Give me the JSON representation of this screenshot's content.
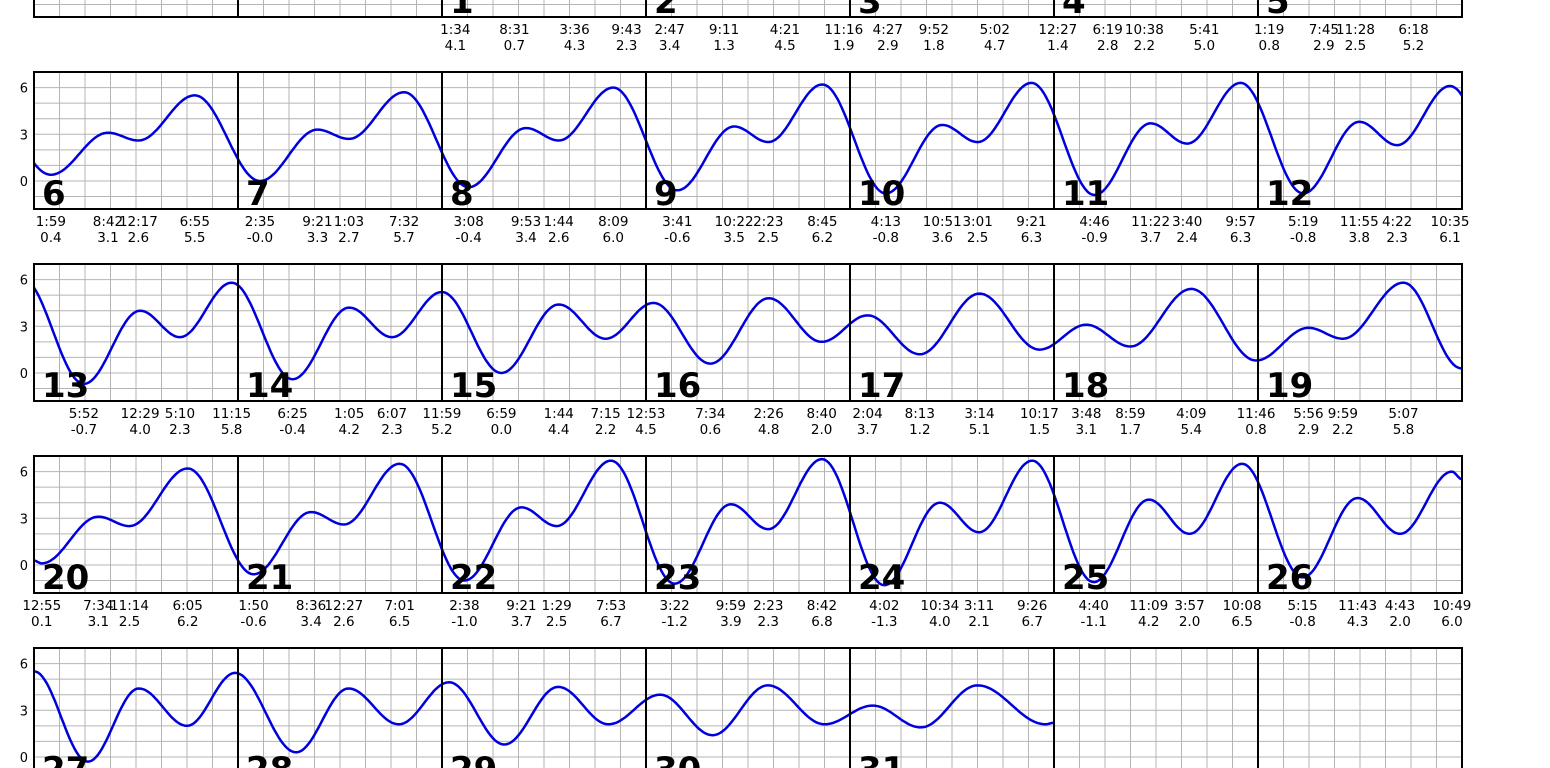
{
  "chart_data": {
    "type": "line",
    "title": "",
    "xlabel": "",
    "ylabel": "",
    "ylim": [
      -1.8,
      7.0
    ],
    "yticks": [
      0,
      3,
      6
    ],
    "grid": true,
    "colors": {
      "curve": "#0000dd",
      "grid": "#b4b4b4",
      "frame": "#000000"
    },
    "weeks": [
      [
        null,
        null,
        1,
        2,
        3,
        4,
        5
      ],
      [
        6,
        7,
        8,
        9,
        10,
        11,
        12
      ],
      [
        13,
        14,
        15,
        16,
        17,
        18,
        19
      ],
      [
        20,
        21,
        22,
        23,
        24,
        25,
        26
      ],
      [
        27,
        28,
        29,
        30,
        31,
        null,
        null
      ]
    ],
    "days": [
      {
        "day": 1,
        "events": [
          [
            "1:34",
            "4.1"
          ],
          [
            "8:31",
            "0.7"
          ],
          [
            "3:36",
            "4.3"
          ],
          [
            "9:43",
            "2.3"
          ]
        ]
      },
      {
        "day": 2,
        "events": [
          [
            "2:47",
            "3.4"
          ],
          [
            "9:11",
            "1.3"
          ],
          [
            "4:21",
            "4.5"
          ],
          [
            "11:16",
            "1.9"
          ]
        ]
      },
      {
        "day": 3,
        "events": [
          [
            "4:27",
            "2.9"
          ],
          [
            "9:52",
            "1.8"
          ],
          [
            "5:02",
            "4.7"
          ]
        ]
      },
      {
        "day": 4,
        "events": [
          [
            "12:27",
            "1.4"
          ],
          [
            "6:19",
            "2.8"
          ],
          [
            "10:38",
            "2.2"
          ],
          [
            "5:41",
            "5.0"
          ]
        ]
      },
      {
        "day": 5,
        "events": [
          [
            "1:19",
            "0.8"
          ],
          [
            "7:45",
            "2.9"
          ],
          [
            "11:28",
            "2.5"
          ],
          [
            "6:18",
            "5.2"
          ]
        ]
      },
      {
        "day": 6,
        "events": [
          [
            "1:59",
            "0.4"
          ],
          [
            "8:42",
            "3.1"
          ],
          [
            "12:17",
            "2.6"
          ],
          [
            "6:55",
            "5.5"
          ]
        ]
      },
      {
        "day": 7,
        "events": [
          [
            "2:35",
            "-0.0"
          ],
          [
            "9:21",
            "3.3"
          ],
          [
            "1:03",
            "2.7"
          ],
          [
            "7:32",
            "5.7"
          ]
        ]
      },
      {
        "day": 8,
        "events": [
          [
            "3:08",
            "-0.4"
          ],
          [
            "9:53",
            "3.4"
          ],
          [
            "1:44",
            "2.6"
          ],
          [
            "8:09",
            "6.0"
          ]
        ]
      },
      {
        "day": 9,
        "events": [
          [
            "3:41",
            "-0.6"
          ],
          [
            "10:22",
            "3.5"
          ],
          [
            "2:23",
            "2.5"
          ],
          [
            "8:45",
            "6.2"
          ]
        ]
      },
      {
        "day": 10,
        "events": [
          [
            "4:13",
            "-0.8"
          ],
          [
            "10:51",
            "3.6"
          ],
          [
            "3:01",
            "2.5"
          ],
          [
            "9:21",
            "6.3"
          ]
        ]
      },
      {
        "day": 11,
        "events": [
          [
            "4:46",
            "-0.9"
          ],
          [
            "11:22",
            "3.7"
          ],
          [
            "3:40",
            "2.4"
          ],
          [
            "9:57",
            "6.3"
          ]
        ]
      },
      {
        "day": 12,
        "events": [
          [
            "5:19",
            "-0.8"
          ],
          [
            "11:55",
            "3.8"
          ],
          [
            "4:22",
            "2.3"
          ],
          [
            "10:35",
            "6.1"
          ]
        ]
      },
      {
        "day": 13,
        "events": [
          [
            "5:52",
            "-0.7"
          ],
          [
            "12:29",
            "4.0"
          ],
          [
            "5:10",
            "2.3"
          ],
          [
            "11:15",
            "5.8"
          ]
        ]
      },
      {
        "day": 14,
        "events": [
          [
            "6:25",
            "-0.4"
          ],
          [
            "1:05",
            "4.2"
          ],
          [
            "6:07",
            "2.3"
          ],
          [
            "11:59",
            "5.2"
          ]
        ]
      },
      {
        "day": 15,
        "events": [
          [
            "6:59",
            "0.0"
          ],
          [
            "1:44",
            "4.4"
          ],
          [
            "7:15",
            "2.2"
          ],
          [
            "12:53",
            "4.5"
          ]
        ]
      },
      {
        "day": 16,
        "events": [
          [
            "7:34",
            "0.6"
          ],
          [
            "2:26",
            "4.8"
          ],
          [
            "8:40",
            "2.0"
          ]
        ]
      },
      {
        "day": 17,
        "events": [
          [
            "2:04",
            "3.7"
          ],
          [
            "8:13",
            "1.2"
          ],
          [
            "3:14",
            "5.1"
          ],
          [
            "10:17",
            "1.5"
          ]
        ]
      },
      {
        "day": 18,
        "events": [
          [
            "3:48",
            "3.1"
          ],
          [
            "8:59",
            "1.7"
          ],
          [
            "4:09",
            "5.4"
          ],
          [
            "11:46",
            "0.8"
          ]
        ]
      },
      {
        "day": 19,
        "events": [
          [
            "5:56",
            "2.9"
          ],
          [
            "9:59",
            "2.2"
          ],
          [
            "5:07",
            "5.8"
          ]
        ]
      },
      {
        "day": 20,
        "events": [
          [
            "12:55",
            "0.1"
          ],
          [
            "7:34",
            "3.1"
          ],
          [
            "11:14",
            "2.5"
          ],
          [
            "6:05",
            "6.2"
          ]
        ]
      },
      {
        "day": 21,
        "events": [
          [
            "1:50",
            "-0.6"
          ],
          [
            "8:36",
            "3.4"
          ],
          [
            "12:27",
            "2.6"
          ],
          [
            "7:01",
            "6.5"
          ]
        ]
      },
      {
        "day": 22,
        "events": [
          [
            "2:38",
            "-1.0"
          ],
          [
            "9:21",
            "3.7"
          ],
          [
            "1:29",
            "2.5"
          ],
          [
            "7:53",
            "6.7"
          ]
        ]
      },
      {
        "day": 23,
        "events": [
          [
            "3:22",
            "-1.2"
          ],
          [
            "9:59",
            "3.9"
          ],
          [
            "2:23",
            "2.3"
          ],
          [
            "8:42",
            "6.8"
          ]
        ]
      },
      {
        "day": 24,
        "events": [
          [
            "4:02",
            "-1.3"
          ],
          [
            "10:34",
            "4.0"
          ],
          [
            "3:11",
            "2.1"
          ],
          [
            "9:26",
            "6.7"
          ]
        ]
      },
      {
        "day": 25,
        "events": [
          [
            "4:40",
            "-1.1"
          ],
          [
            "11:09",
            "4.2"
          ],
          [
            "3:57",
            "2.0"
          ],
          [
            "10:08",
            "6.5"
          ]
        ]
      },
      {
        "day": 26,
        "events": [
          [
            "5:15",
            "-0.8"
          ],
          [
            "11:43",
            "4.3"
          ],
          [
            "4:43",
            "2.0"
          ],
          [
            "10:49",
            "6.0"
          ]
        ]
      },
      {
        "day": 27,
        "events": []
      },
      {
        "day": 28,
        "events": []
      },
      {
        "day": 29,
        "events": []
      },
      {
        "day": 30,
        "events": []
      },
      {
        "day": 31,
        "events": []
      }
    ],
    "extra_tide_points": [
      {
        "day": 19,
        "time": "23:55",
        "value": 0.3
      },
      {
        "day": 27,
        "time": "00:00",
        "value": 5.5
      },
      {
        "day": 27,
        "time": "06:20",
        "value": -0.3
      },
      {
        "day": 27,
        "time": "12:20",
        "value": 4.4
      },
      {
        "day": 27,
        "time": "18:00",
        "value": 2.0
      },
      {
        "day": 27,
        "time": "23:40",
        "value": 5.4
      },
      {
        "day": 28,
        "time": "06:50",
        "value": 0.3
      },
      {
        "day": 28,
        "time": "13:00",
        "value": 4.4
      },
      {
        "day": 28,
        "time": "18:55",
        "value": 2.1
      },
      {
        "day": 29,
        "time": "00:50",
        "value": 4.8
      },
      {
        "day": 29,
        "time": "07:20",
        "value": 0.8
      },
      {
        "day": 29,
        "time": "13:40",
        "value": 4.5
      },
      {
        "day": 29,
        "time": "19:35",
        "value": 2.1
      },
      {
        "day": 30,
        "time": "01:40",
        "value": 4.0
      },
      {
        "day": 30,
        "time": "07:50",
        "value": 1.4
      },
      {
        "day": 30,
        "time": "14:20",
        "value": 4.6
      },
      {
        "day": 30,
        "time": "21:00",
        "value": 2.1
      },
      {
        "day": 31,
        "time": "02:40",
        "value": 3.3
      },
      {
        "day": 31,
        "time": "08:20",
        "value": 1.9
      },
      {
        "day": 31,
        "time": "15:00",
        "value": 4.6
      },
      {
        "day": 31,
        "time": "23:00",
        "value": 2.1
      },
      {
        "day": 31,
        "time": "24:00",
        "value": 2.2
      }
    ]
  }
}
